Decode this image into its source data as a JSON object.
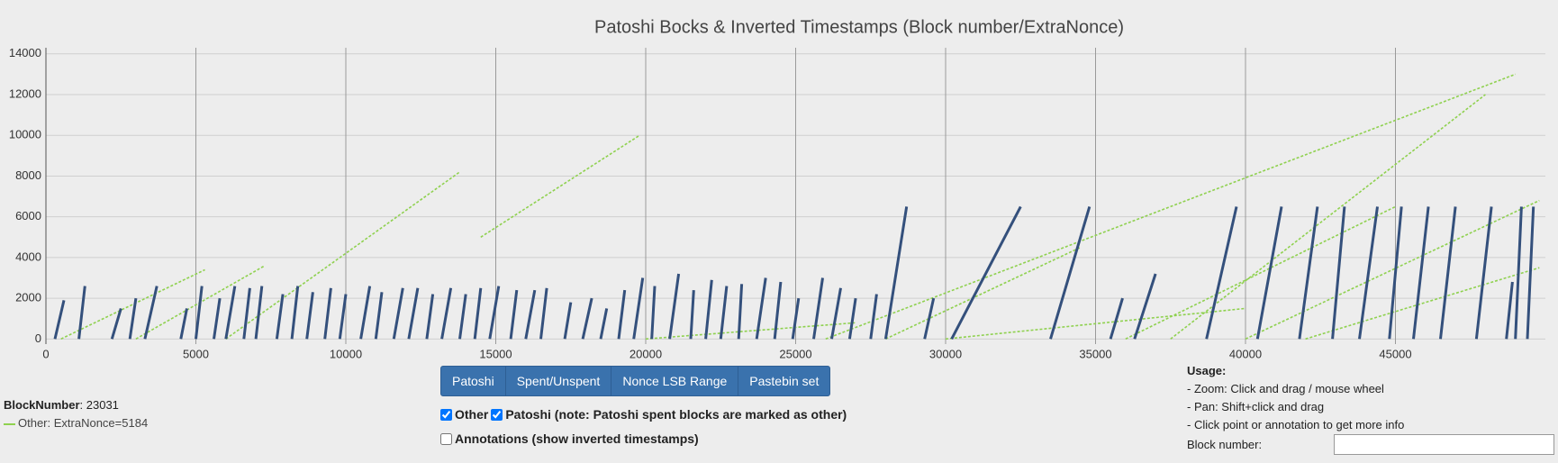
{
  "chart_data": {
    "type": "line",
    "title": "Patoshi Bocks & Inverted Timestamps (Block number/ExtraNonce)",
    "xlim": [
      0,
      50000
    ],
    "ylim": [
      -250,
      14300
    ],
    "xticks": [
      0,
      5000,
      10000,
      15000,
      20000,
      25000,
      30000,
      35000,
      40000,
      45000
    ],
    "yticks": [
      0,
      2000,
      4000,
      6000,
      8000,
      10000,
      12000,
      14000
    ],
    "grid": true,
    "series": [
      {
        "name": "Other",
        "color": "#8fd14f",
        "x": [
          500,
          5300,
          null,
          3000,
          7300,
          null,
          6000,
          13800,
          null,
          14500,
          19800,
          null,
          26000,
          49000,
          null,
          37500,
          48000,
          null,
          28000,
          34500,
          null,
          36000,
          45000,
          null,
          40000,
          49800,
          null,
          20000,
          27000,
          null,
          30000,
          40000,
          null,
          42000,
          49800
        ],
        "values": [
          0,
          3400,
          null,
          0,
          3600,
          null,
          0,
          8200,
          null,
          5000,
          10000,
          null,
          0,
          13000,
          null,
          0,
          12000,
          null,
          0,
          4500,
          null,
          0,
          6500,
          null,
          0,
          6800,
          null,
          0,
          800,
          null,
          0,
          1500,
          null,
          0,
          3500
        ]
      },
      {
        "name": "Patoshi",
        "color": "#34507c",
        "x": [
          300,
          600,
          null,
          1100,
          1300,
          null,
          2200,
          2500,
          null,
          2800,
          3000,
          null,
          3300,
          3700,
          null,
          4500,
          4700,
          null,
          5000,
          5200,
          null,
          5600,
          5800,
          null,
          6000,
          6300,
          null,
          6600,
          6800,
          null,
          7000,
          7200,
          null,
          7700,
          7900,
          null,
          8200,
          8400,
          null,
          8700,
          8900,
          null,
          9300,
          9500,
          null,
          9800,
          10000,
          null,
          10500,
          10800,
          null,
          11000,
          11200,
          null,
          11600,
          11900,
          null,
          12100,
          12400,
          null,
          12700,
          12900,
          null,
          13200,
          13500,
          null,
          13800,
          14000,
          null,
          14300,
          14500,
          null,
          14800,
          15100,
          null,
          15500,
          15700,
          null,
          16000,
          16300,
          null,
          16500,
          16700,
          null,
          17300,
          17500,
          null,
          17900,
          18200,
          null,
          18500,
          18700,
          null,
          19100,
          19300,
          null,
          19600,
          19900,
          null,
          20200,
          20300,
          null,
          20800,
          21100,
          null,
          21500,
          21600,
          null,
          22000,
          22200,
          null,
          22500,
          22700,
          null,
          23100,
          23200,
          null,
          23700,
          24000,
          null,
          24300,
          24500,
          null,
          24900,
          25100,
          null,
          25600,
          25900,
          null,
          26200,
          26500,
          null,
          26800,
          27000,
          null,
          27500,
          27700,
          null,
          28000,
          28700,
          null,
          29300,
          29600,
          null,
          30200,
          32500,
          null,
          33500,
          34800,
          null,
          35500,
          35900,
          null,
          36300,
          37000,
          null,
          38700,
          39700,
          null,
          40400,
          41200,
          null,
          41800,
          42400,
          null,
          42900,
          43300,
          null,
          43800,
          44400,
          null,
          44800,
          45200,
          null,
          45600,
          46100,
          null,
          46500,
          47000,
          null,
          47700,
          48200,
          null,
          48700,
          48900,
          null,
          49000,
          49200,
          null,
          49400,
          49600
        ],
        "values": [
          0,
          1900,
          null,
          0,
          2600,
          null,
          0,
          1500,
          null,
          0,
          2000,
          null,
          0,
          2600,
          null,
          0,
          1500,
          null,
          0,
          2600,
          null,
          0,
          2000,
          null,
          0,
          2600,
          null,
          0,
          2500,
          null,
          0,
          2600,
          null,
          0,
          2200,
          null,
          0,
          2600,
          null,
          0,
          2300,
          null,
          0,
          2500,
          null,
          0,
          2200,
          null,
          0,
          2600,
          null,
          0,
          2300,
          null,
          0,
          2500,
          null,
          0,
          2500,
          null,
          0,
          2200,
          null,
          0,
          2500,
          null,
          0,
          2200,
          null,
          0,
          2500,
          null,
          0,
          2600,
          null,
          0,
          2400,
          null,
          0,
          2400,
          null,
          0,
          2500,
          null,
          0,
          1800,
          null,
          0,
          2000,
          null,
          0,
          1500,
          null,
          0,
          2400,
          null,
          0,
          3000,
          null,
          0,
          2600,
          null,
          0,
          3200,
          null,
          0,
          2400,
          null,
          0,
          2900,
          null,
          0,
          2600,
          null,
          0,
          2700,
          null,
          0,
          3000,
          null,
          0,
          2800,
          null,
          0,
          2000,
          null,
          0,
          3000,
          null,
          0,
          2500,
          null,
          0,
          2000,
          null,
          0,
          2200,
          null,
          0,
          6500,
          null,
          0,
          2000,
          null,
          0,
          6500,
          null,
          0,
          6500,
          null,
          0,
          2000,
          null,
          0,
          3200,
          null,
          0,
          6500,
          null,
          0,
          6500,
          null,
          0,
          6500,
          null,
          0,
          6500,
          null,
          0,
          6500,
          null,
          0,
          6500,
          null,
          0,
          6500,
          null,
          0,
          6500,
          null,
          0,
          6500,
          null,
          0,
          2800,
          null,
          0,
          6500,
          null,
          0,
          6500
        ]
      }
    ]
  },
  "buttons": [
    "Patoshi",
    "Spent/Unspent",
    "Nonce LSB Range",
    "Pastebin set"
  ],
  "checkboxes": [
    {
      "label": "Other",
      "checked": true
    },
    {
      "label": "Patoshi (note: Patoshi spent blocks are marked as other)",
      "checked": true
    },
    {
      "label": "Annotations (show inverted timestamps)",
      "checked": false
    }
  ],
  "info": {
    "block_label": "BlockNumber",
    "block_text": ": 23031",
    "legend": "Other: ExtraNonce=5184"
  },
  "usage": {
    "title": "Usage:",
    "lines": [
      "- Zoom: Click and drag / mouse wheel",
      "- Pan: Shift+click and drag",
      "- Click point or annotation to get more info"
    ],
    "input_label": "Block number:"
  }
}
